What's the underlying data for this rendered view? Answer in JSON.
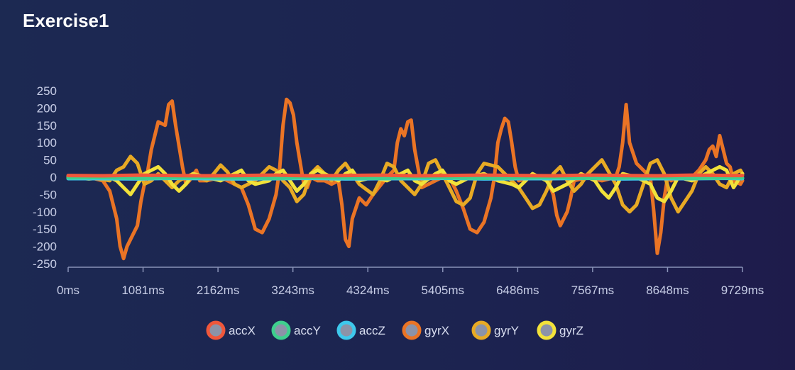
{
  "header": {
    "title": "Exercise1"
  },
  "colors": {
    "axis": "#8a93b8",
    "legend_fill": "#8c93a8"
  },
  "chart_data": {
    "type": "line",
    "title": "Exercise1",
    "xlabel": "",
    "ylabel": "",
    "xlim": [
      0,
      9729
    ],
    "ylim": [
      -250,
      250
    ],
    "grid": false,
    "legend_placement": "bottom-center",
    "y_ticks": [
      250,
      200,
      150,
      100,
      50,
      0,
      -50,
      -100,
      -150,
      -200,
      -250
    ],
    "x_ticks": [
      0,
      1081,
      2162,
      3243,
      4324,
      5405,
      6486,
      7567,
      8648,
      9729
    ],
    "x_tick_labels": [
      "0ms",
      "1081ms",
      "2162ms",
      "3243ms",
      "4324ms",
      "5405ms",
      "6486ms",
      "7567ms",
      "8648ms",
      "9729ms"
    ],
    "series": [
      {
        "name": "accX",
        "color": "#f0573b",
        "x": [
          0,
          500,
          1000,
          1500,
          2000,
          2500,
          3000,
          3500,
          4000,
          4500,
          5000,
          5500,
          6000,
          6500,
          7000,
          7500,
          8000,
          8500,
          9000,
          9500,
          9729
        ],
        "y": [
          5,
          4,
          6,
          5,
          4,
          5,
          6,
          4,
          5,
          6,
          4,
          5,
          6,
          5,
          4,
          6,
          5,
          4,
          6,
          5,
          5
        ]
      },
      {
        "name": "accY",
        "color": "#3ecf8e",
        "x": [
          0,
          500,
          1000,
          1500,
          2000,
          2500,
          3000,
          3500,
          4000,
          4500,
          5000,
          5500,
          6000,
          6500,
          7000,
          7500,
          8000,
          8500,
          9000,
          9500,
          9729
        ],
        "y": [
          -2,
          -1,
          -3,
          -2,
          -1,
          -2,
          -3,
          -1,
          -2,
          -3,
          -1,
          -2,
          -3,
          -2,
          -1,
          -3,
          -2,
          -1,
          -3,
          -2,
          -2
        ]
      },
      {
        "name": "accZ",
        "color": "#3ec8ec",
        "x": [
          0,
          500,
          1000,
          1500,
          2000,
          2500,
          3000,
          3500,
          4000,
          4500,
          5000,
          5500,
          6000,
          6500,
          7000,
          7500,
          8000,
          8500,
          9000,
          9500,
          9729
        ],
        "y": [
          -4,
          -4,
          -5,
          -3,
          -4,
          -5,
          -4,
          -3,
          -5,
          -4,
          -4,
          -3,
          -5,
          -4,
          -4,
          -3,
          -5,
          -4,
          -4,
          -3,
          -4
        ]
      },
      {
        "name": "gyrX",
        "color": "#ea7425",
        "x": [
          0,
          300,
          500,
          600,
          700,
          750,
          800,
          850,
          900,
          1000,
          1050,
          1100,
          1150,
          1200,
          1300,
          1400,
          1450,
          1500,
          1550,
          1650,
          1700,
          1750,
          1850,
          1900,
          2000,
          2200,
          2300,
          2500,
          2600,
          2700,
          2800,
          2900,
          3000,
          3050,
          3100,
          3150,
          3200,
          3250,
          3300,
          3350,
          3400,
          3450,
          3500,
          3600,
          3700,
          3800,
          3900,
          3950,
          4000,
          4050,
          4100,
          4200,
          4300,
          4400,
          4600,
          4700,
          4750,
          4800,
          4850,
          4900,
          4950,
          5000,
          5100,
          5200,
          5400,
          5500,
          5600,
          5700,
          5800,
          5900,
          6000,
          6100,
          6150,
          6200,
          6250,
          6300,
          6350,
          6400,
          6450,
          6500,
          6700,
          6900,
          7000,
          7050,
          7100,
          7200,
          7250,
          7300,
          7500,
          7700,
          7900,
          7950,
          8000,
          8050,
          8100,
          8200,
          8400,
          8450,
          8500,
          8550,
          8600,
          8650,
          8700,
          8800,
          9000,
          9100,
          9200,
          9250,
          9300,
          9350,
          9400,
          9450,
          9500,
          9550,
          9600,
          9700,
          9729
        ],
        "y": [
          0,
          0,
          -10,
          -40,
          -120,
          -200,
          -235,
          -200,
          -180,
          -140,
          -70,
          -20,
          20,
          80,
          160,
          150,
          210,
          220,
          150,
          30,
          -20,
          -10,
          20,
          -10,
          -10,
          0,
          -10,
          -30,
          -80,
          -150,
          -160,
          -120,
          -50,
          20,
          150,
          225,
          215,
          180,
          100,
          40,
          -20,
          -30,
          0,
          -10,
          -10,
          -20,
          -10,
          -80,
          -180,
          -200,
          -120,
          -60,
          -80,
          -50,
          0,
          20,
          100,
          140,
          120,
          160,
          165,
          80,
          -30,
          -20,
          0,
          0,
          -40,
          -90,
          -150,
          -160,
          -130,
          -60,
          0,
          100,
          140,
          170,
          160,
          100,
          30,
          -10,
          0,
          0,
          -50,
          -110,
          -140,
          -100,
          -60,
          -10,
          0,
          -10,
          0,
          30,
          100,
          210,
          100,
          40,
          0,
          -100,
          -220,
          -160,
          -60,
          0,
          -10,
          0,
          0,
          20,
          50,
          80,
          90,
          60,
          120,
          80,
          40,
          30,
          -10,
          -20,
          -10
        ]
      },
      {
        "name": "gyrY",
        "color": "#e8aa24",
        "x": [
          0,
          300,
          600,
          700,
          800,
          900,
          1000,
          1100,
          1200,
          1300,
          1400,
          1500,
          1600,
          1800,
          2000,
          2100,
          2200,
          2300,
          2400,
          2500,
          2700,
          2900,
          3000,
          3100,
          3200,
          3300,
          3400,
          3500,
          3600,
          3700,
          3800,
          3900,
          4000,
          4100,
          4200,
          4400,
          4500,
          4600,
          4700,
          4800,
          4900,
          5000,
          5100,
          5200,
          5300,
          5400,
          5500,
          5600,
          5700,
          5800,
          5900,
          6000,
          6200,
          6400,
          6500,
          6600,
          6700,
          6800,
          6900,
          7000,
          7100,
          7200,
          7300,
          7400,
          7500,
          7600,
          7700,
          7900,
          8000,
          8100,
          8200,
          8300,
          8400,
          8500,
          8600,
          8700,
          8800,
          9000,
          9100,
          9200,
          9300,
          9400,
          9500,
          9600,
          9700,
          9729
        ],
        "y": [
          0,
          0,
          -10,
          20,
          30,
          60,
          40,
          -20,
          -10,
          10,
          -10,
          -30,
          -10,
          10,
          -10,
          10,
          35,
          15,
          -20,
          -30,
          -10,
          30,
          20,
          -10,
          -30,
          -70,
          -50,
          10,
          30,
          10,
          -10,
          20,
          40,
          10,
          -20,
          -50,
          -10,
          40,
          30,
          -10,
          -30,
          -50,
          -20,
          40,
          50,
          10,
          -30,
          -70,
          -80,
          -60,
          10,
          40,
          30,
          -10,
          -30,
          -60,
          -90,
          -80,
          -40,
          10,
          30,
          -10,
          -40,
          -20,
          10,
          30,
          50,
          -20,
          -80,
          -100,
          -80,
          -20,
          40,
          50,
          10,
          -60,
          -100,
          -40,
          10,
          30,
          10,
          -20,
          -30,
          10,
          20,
          10
        ]
      },
      {
        "name": "gyrZ",
        "color": "#f2e23a",
        "x": [
          0,
          300,
          600,
          700,
          800,
          900,
          1000,
          1100,
          1200,
          1300,
          1400,
          1500,
          1600,
          1700,
          1800,
          2000,
          2200,
          2400,
          2500,
          2600,
          2700,
          2900,
          3000,
          3100,
          3200,
          3300,
          3400,
          3500,
          3600,
          3800,
          3900,
          4000,
          4100,
          4200,
          4400,
          4600,
          4800,
          4900,
          5000,
          5100,
          5300,
          5400,
          5500,
          5600,
          5800,
          6000,
          6200,
          6400,
          6500,
          6600,
          6700,
          6800,
          6900,
          7000,
          7200,
          7400,
          7600,
          7700,
          7800,
          7900,
          8000,
          8200,
          8400,
          8500,
          8600,
          8700,
          8800,
          9000,
          9200,
          9300,
          9400,
          9500,
          9600,
          9729
        ],
        "y": [
          0,
          -5,
          0,
          -10,
          -30,
          -50,
          -20,
          10,
          20,
          30,
          10,
          -20,
          -40,
          -20,
          10,
          0,
          -10,
          10,
          20,
          -10,
          -20,
          -10,
          10,
          20,
          -10,
          -40,
          -20,
          10,
          20,
          0,
          -10,
          10,
          20,
          -10,
          0,
          -10,
          10,
          20,
          -10,
          -20,
          10,
          20,
          -10,
          -20,
          0,
          10,
          -10,
          -20,
          -30,
          -10,
          10,
          0,
          -10,
          -40,
          -20,
          10,
          -10,
          -40,
          -60,
          -30,
          10,
          0,
          -20,
          -60,
          -70,
          -40,
          0,
          -10,
          10,
          20,
          30,
          20,
          -30,
          10
        ]
      }
    ]
  },
  "legend": {
    "items": [
      {
        "label": "accX",
        "color": "#f0573b"
      },
      {
        "label": "accY",
        "color": "#3ecf8e"
      },
      {
        "label": "accZ",
        "color": "#3ec8ec"
      },
      {
        "label": "gyrX",
        "color": "#ea7425"
      },
      {
        "label": "gyrY",
        "color": "#e8aa24"
      },
      {
        "label": "gyrZ",
        "color": "#f2e23a"
      }
    ]
  }
}
